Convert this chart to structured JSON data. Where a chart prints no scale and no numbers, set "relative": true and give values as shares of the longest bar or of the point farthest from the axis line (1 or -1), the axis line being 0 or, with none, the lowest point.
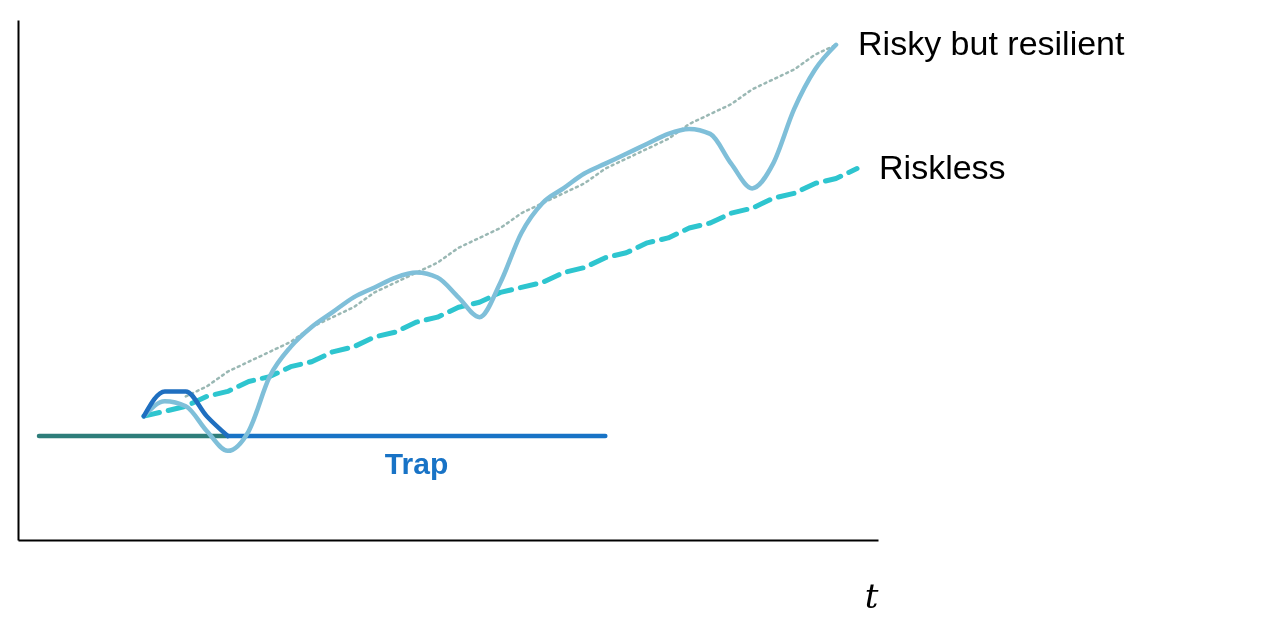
{
  "chart_data": {
    "type": "line",
    "relative": true,
    "xlabel": "t",
    "grid": false,
    "categories": [
      null,
      null,
      null,
      null,
      null,
      null,
      null,
      null,
      null,
      null,
      null,
      null,
      null,
      null,
      null,
      null,
      null,
      null,
      null,
      null,
      null,
      null,
      null,
      null,
      null,
      null,
      null,
      null,
      null,
      null,
      null,
      null,
      null,
      null,
      null,
      null,
      null,
      null,
      null,
      null
    ],
    "series": [
      {
        "color": "#2e7d7a",
        "line_style": "solid",
        "values": [
          0.21,
          0.21,
          0.21,
          0.21,
          0.21,
          0.21,
          0.21,
          0.21,
          0.21,
          0.21,
          null,
          null,
          null,
          null,
          null,
          null,
          null,
          null,
          null,
          null,
          null,
          null,
          null,
          null,
          null,
          null,
          null,
          null,
          null,
          null,
          null,
          null,
          null,
          null,
          null,
          null,
          null,
          null,
          null,
          null
        ]
      },
      {
        "name": "Trap",
        "color": "#1873c6",
        "line_style": "solid",
        "values": [
          null,
          null,
          null,
          null,
          null,
          null,
          null,
          null,
          null,
          0.21,
          0.21,
          0.21,
          0.21,
          0.21,
          0.21,
          0.21,
          0.21,
          0.21,
          0.21,
          0.21,
          0.21,
          0.21,
          0.21,
          0.21,
          0.21,
          0.21,
          0.21,
          0.21,
          null,
          null,
          null,
          null,
          null,
          null,
          null,
          null,
          null,
          null,
          null,
          null
        ]
      },
      {
        "color": "#9ab8b4",
        "line_style": "dotted",
        "values": [
          null,
          null,
          null,
          null,
          null,
          null,
          null,
          0.29,
          0.31,
          0.34,
          0.36,
          0.38,
          0.4,
          0.43,
          0.45,
          0.47,
          0.5,
          0.52,
          0.54,
          0.56,
          0.59,
          0.61,
          0.63,
          0.66,
          0.68,
          0.7,
          0.72,
          0.75,
          0.77,
          0.79,
          0.81,
          0.84,
          0.86,
          0.88,
          0.91,
          0.93,
          0.95,
          0.98,
          1.0,
          null
        ]
      },
      {
        "name": "Riskless",
        "color": "#2ec5cf",
        "line_style": "dashed",
        "values": [
          null,
          null,
          null,
          null,
          null,
          0.25,
          0.26,
          0.27,
          0.29,
          0.3,
          0.32,
          0.33,
          0.35,
          0.36,
          0.38,
          0.39,
          0.41,
          0.42,
          0.44,
          0.45,
          0.47,
          0.48,
          0.5,
          0.51,
          0.52,
          0.54,
          0.55,
          0.57,
          0.58,
          0.6,
          0.61,
          0.63,
          0.64,
          0.66,
          0.67,
          0.69,
          0.7,
          0.72,
          0.73,
          0.75
        ]
      },
      {
        "name": "Risky but resilient",
        "color": "#7fbfd9",
        "line_style": "solid",
        "values": [
          null,
          null,
          null,
          null,
          null,
          0.25,
          0.28,
          0.27,
          0.22,
          0.18,
          0.22,
          0.33,
          0.39,
          0.43,
          0.46,
          0.49,
          0.51,
          0.53,
          0.54,
          0.53,
          0.49,
          0.45,
          0.52,
          0.62,
          0.68,
          0.71,
          0.74,
          0.76,
          0.78,
          0.8,
          0.82,
          0.83,
          0.82,
          0.76,
          0.71,
          0.76,
          0.87,
          0.95,
          1.0,
          null
        ]
      },
      {
        "color": "#1f6fc0",
        "line_style": "solid",
        "values": [
          null,
          null,
          null,
          null,
          null,
          0.25,
          0.3,
          0.3,
          0.25,
          0.21,
          null,
          null,
          null,
          null,
          null,
          null,
          null,
          null,
          null,
          null,
          null,
          null,
          null,
          null,
          null,
          null,
          null,
          null,
          null,
          null,
          null,
          null,
          null,
          null,
          null,
          null,
          null,
          null,
          null,
          null
        ]
      }
    ]
  }
}
